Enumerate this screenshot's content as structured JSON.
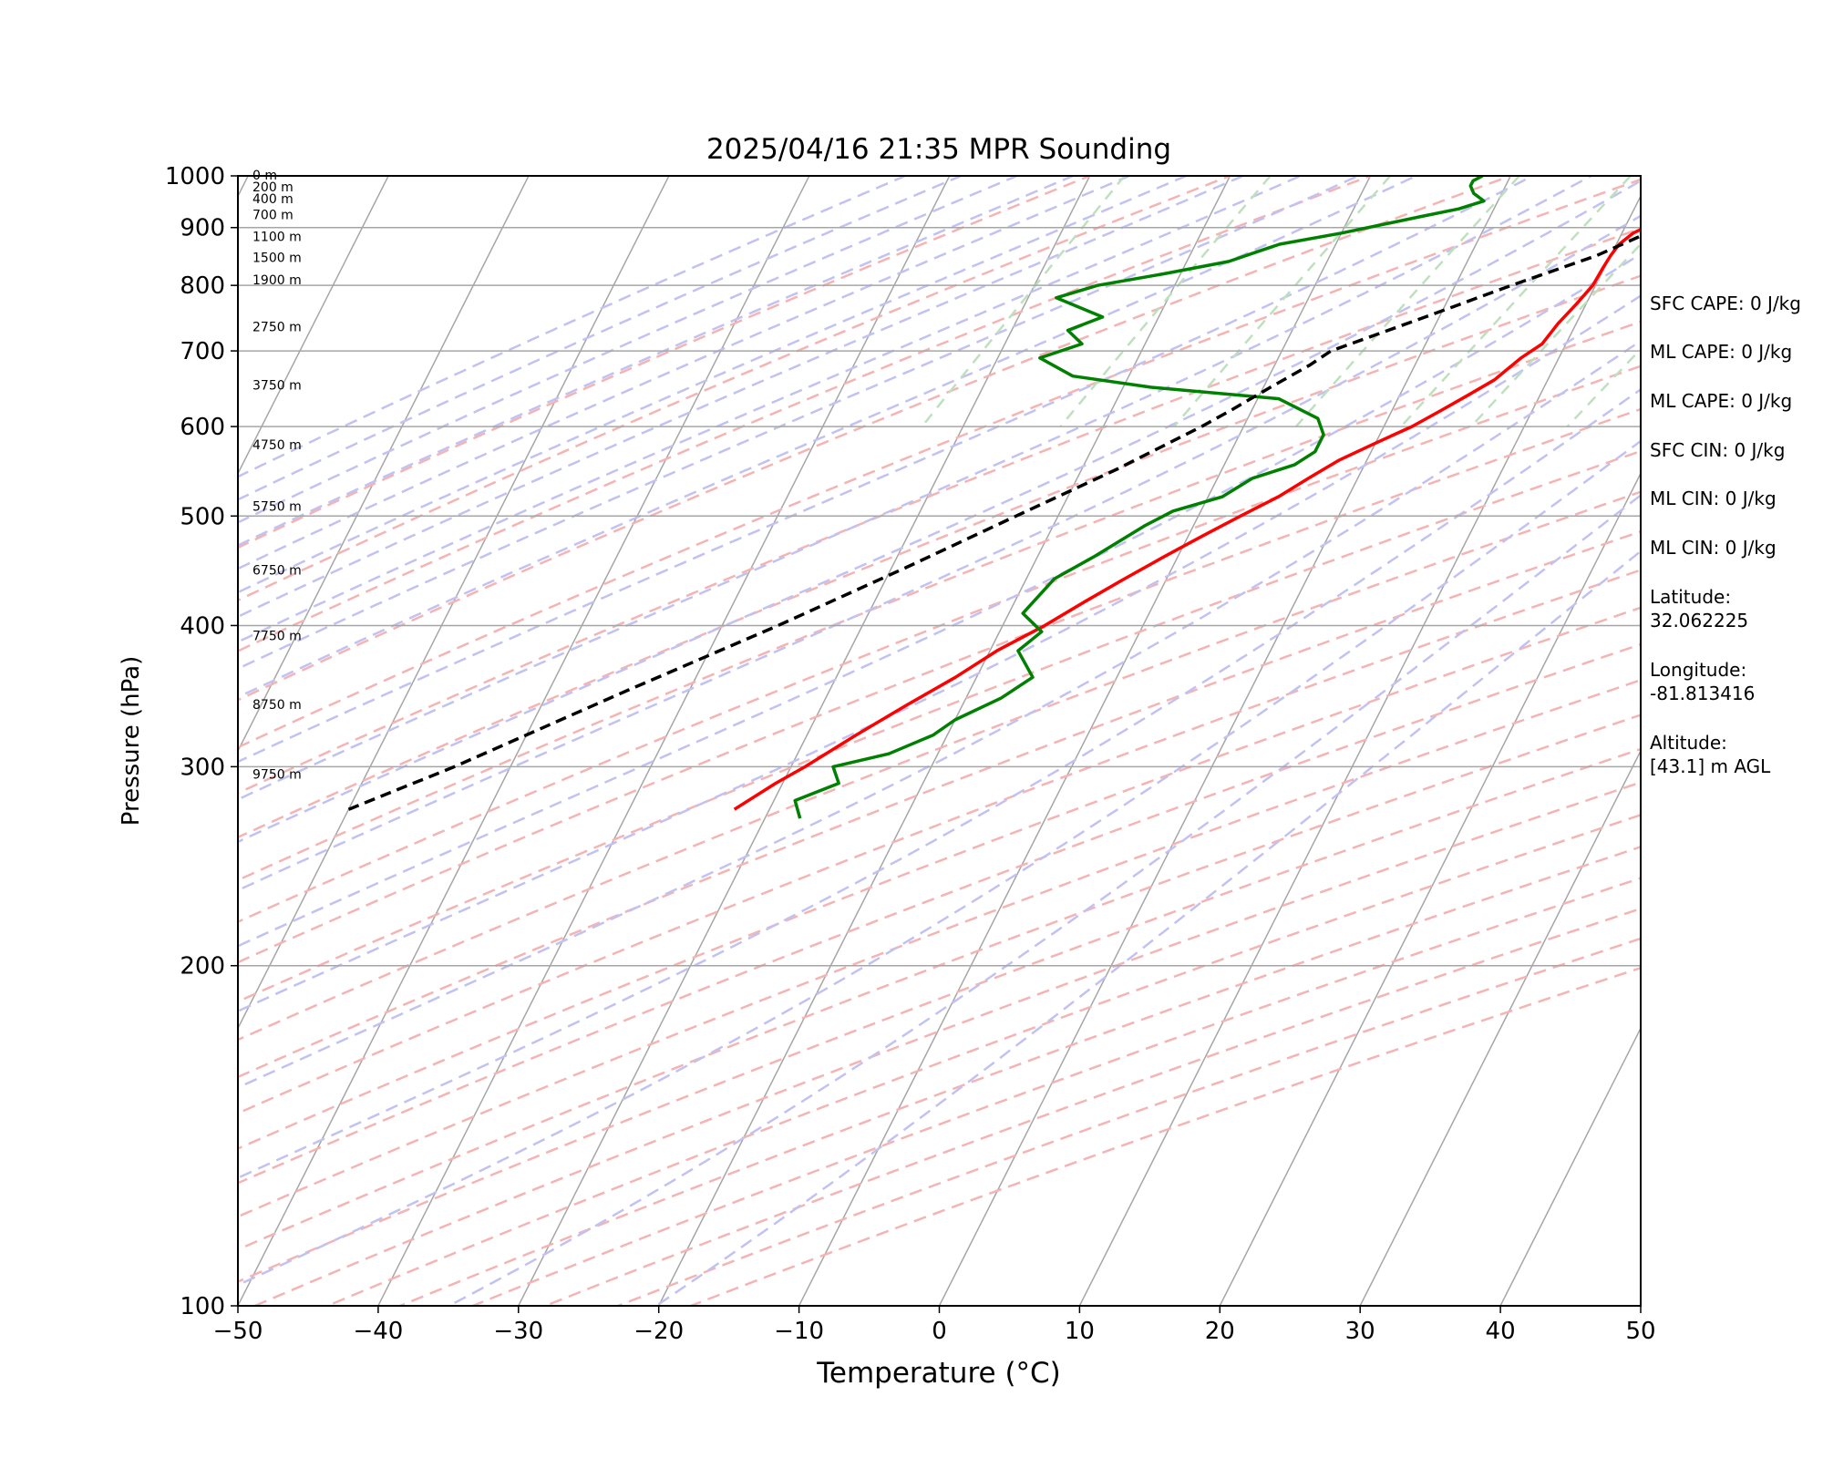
{
  "chart_data": {
    "type": "line",
    "subtype": "skew-t log-p sounding",
    "title": "2025/04/16 21:35 MPR Sounding",
    "xlabel": "Temperature (°C)",
    "ylabel": "Pressure (hPa)",
    "xlim": [
      -50,
      50
    ],
    "ylim": [
      1000,
      100
    ],
    "y_scale": "log",
    "x_ticks": [
      "−50",
      "−40",
      "−30",
      "−20",
      "−10",
      "0",
      "10",
      "20",
      "30",
      "40",
      "50"
    ],
    "y_ticks": [
      "100",
      "200",
      "300",
      "400",
      "500",
      "600",
      "700",
      "800",
      "900",
      "1000"
    ],
    "grid": true,
    "background_lines": {
      "isotherms_color": "#a6a6a6",
      "dry_adiabats_color": "#f4b4b4",
      "moist_adiabats_color": "#c2c2f2",
      "mixing_ratio_color": "#bfe0bf"
    },
    "series": [
      {
        "role": "temperature",
        "color": "#ff0000",
        "points": [
          [
            1000,
            22.0
          ],
          [
            990,
            20.0
          ],
          [
            975,
            17.5
          ],
          [
            960,
            15.5
          ],
          [
            945,
            14.0
          ],
          [
            930,
            13.0
          ],
          [
            910,
            12.0
          ],
          [
            890,
            10.8
          ],
          [
            870,
            10.2
          ],
          [
            850,
            10.0
          ],
          [
            830,
            9.9
          ],
          [
            800,
            9.8
          ],
          [
            770,
            9.3
          ],
          [
            740,
            8.7
          ],
          [
            710,
            8.3
          ],
          [
            690,
            7.3
          ],
          [
            660,
            6.2
          ],
          [
            640,
            4.9
          ],
          [
            620,
            3.5
          ],
          [
            600,
            2.0
          ],
          [
            580,
            0.0
          ],
          [
            560,
            -2.0
          ],
          [
            540,
            -3.5
          ],
          [
            520,
            -5.0
          ],
          [
            500,
            -7.0
          ],
          [
            480,
            -9.0
          ],
          [
            460,
            -11.0
          ],
          [
            440,
            -13.0
          ],
          [
            420,
            -15.0
          ],
          [
            400,
            -17.0
          ],
          [
            380,
            -19.5
          ],
          [
            360,
            -21.5
          ],
          [
            340,
            -24.0
          ],
          [
            320,
            -26.5
          ],
          [
            300,
            -29.0
          ],
          [
            290,
            -30.5
          ],
          [
            275,
            -32.5
          ]
        ]
      },
      {
        "role": "dewpoint",
        "color": "#008000",
        "points": [
          [
            1000,
            -2.0
          ],
          [
            990,
            -2.5
          ],
          [
            980,
            -2.5
          ],
          [
            965,
            -2.0
          ],
          [
            950,
            -1.0
          ],
          [
            935,
            -2.5
          ],
          [
            920,
            -5.0
          ],
          [
            890,
            -10.0
          ],
          [
            870,
            -14.0
          ],
          [
            860,
            -15.0
          ],
          [
            840,
            -17.0
          ],
          [
            820,
            -21.0
          ],
          [
            800,
            -25.5
          ],
          [
            780,
            -28.0
          ],
          [
            750,
            -24.0
          ],
          [
            730,
            -26.0
          ],
          [
            710,
            -24.5
          ],
          [
            690,
            -27.0
          ],
          [
            665,
            -24.0
          ],
          [
            650,
            -18.0
          ],
          [
            635,
            -8.5
          ],
          [
            610,
            -5.0
          ],
          [
            590,
            -4.0
          ],
          [
            570,
            -4.0
          ],
          [
            555,
            -5.0
          ],
          [
            540,
            -7.5
          ],
          [
            520,
            -9.0
          ],
          [
            505,
            -12.0
          ],
          [
            490,
            -13.5
          ],
          [
            460,
            -16.0
          ],
          [
            440,
            -18.0
          ],
          [
            410,
            -19.0
          ],
          [
            395,
            -17.0
          ],
          [
            380,
            -18.0
          ],
          [
            360,
            -16.0
          ],
          [
            345,
            -17.5
          ],
          [
            330,
            -20.0
          ],
          [
            320,
            -21.0
          ],
          [
            308,
            -23.5
          ],
          [
            300,
            -27.0
          ],
          [
            290,
            -26.0
          ],
          [
            280,
            -28.5
          ],
          [
            270,
            -27.5
          ]
        ]
      },
      {
        "role": "parcel",
        "color": "#000000",
        "dashed": true,
        "points": [
          [
            1000,
            22.0
          ],
          [
            950,
            17.5
          ],
          [
            900,
            12.5
          ],
          [
            850,
            9.0
          ],
          [
            800,
            4.0
          ],
          [
            750,
            -1.0
          ],
          [
            700,
            -6.5
          ],
          [
            680,
            -7.5
          ],
          [
            650,
            -9.5
          ],
          [
            620,
            -11.5
          ],
          [
            600,
            -13.0
          ],
          [
            550,
            -17.5
          ],
          [
            500,
            -23.0
          ],
          [
            450,
            -29.0
          ],
          [
            400,
            -36.0
          ],
          [
            350,
            -44.5
          ],
          [
            300,
            -54.0
          ],
          [
            275,
            -60.0
          ]
        ]
      }
    ],
    "height_annotations": [
      {
        "label": "0 m",
        "p": 1000
      },
      {
        "label": "200 m",
        "p": 976
      },
      {
        "label": "400 m",
        "p": 953
      },
      {
        "label": "700 m",
        "p": 922
      },
      {
        "label": "1100 m",
        "p": 882
      },
      {
        "label": "1500 m",
        "p": 845
      },
      {
        "label": "1900 m",
        "p": 808
      },
      {
        "label": "2750 m",
        "p": 734
      },
      {
        "label": "3750 m",
        "p": 652
      },
      {
        "label": "4750 m",
        "p": 577
      },
      {
        "label": "5750 m",
        "p": 509
      },
      {
        "label": "6750 m",
        "p": 447
      },
      {
        "label": "7750 m",
        "p": 391
      },
      {
        "label": "8750 m",
        "p": 340
      },
      {
        "label": "9750 m",
        "p": 295
      }
    ]
  },
  "info_panel": {
    "sfc_cape": "SFC CAPE: 0 J/kg",
    "ml_cape_1": "ML CAPE: 0 J/kg",
    "ml_cape_2": "ML CAPE: 0 J/kg",
    "sfc_cin": "SFC CIN: 0 J/kg",
    "ml_cin_1": "ML CIN: 0 J/kg",
    "ml_cin_2": "ML CIN: 0 J/kg",
    "latitude": "Latitude:\n32.062225",
    "longitude": "Longitude:\n-81.813416",
    "altitude": "Altitude:\n[43.1] m AGL"
  }
}
